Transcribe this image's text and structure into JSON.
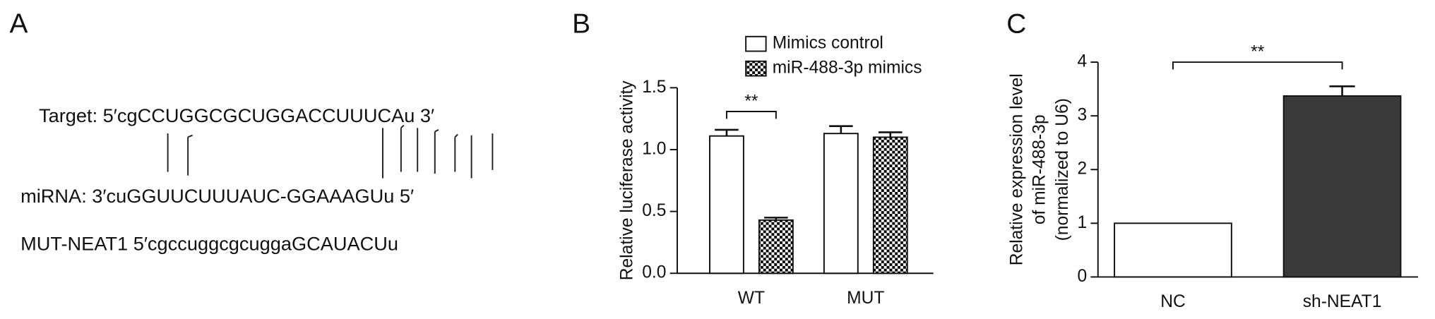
{
  "panel_a": {
    "label": "A",
    "lines": [
      "Target: 5′cgCCUGGCGCUGGACCUUUCAu 3′",
      "miRNA: 3′cuGGUUCUUUAUC-GGAAAGUu 5′",
      "MUT-NEAT1 5′cgccuggcgcuggaGCAUACUu"
    ]
  },
  "chart_data": [
    {
      "type": "bar",
      "label": "B",
      "ylabel": "Relative luciferase activity",
      "categories": [
        "WT",
        "MUT"
      ],
      "series": [
        {
          "name": "Mimics control",
          "color": "#ffffff",
          "values": [
            1.11,
            1.13
          ],
          "errors": [
            0.05,
            0.06
          ]
        },
        {
          "name": "miR-488-3p mimics",
          "color": "#000000",
          "pattern": "checker",
          "values": [
            0.43,
            1.1
          ],
          "errors": [
            0.02,
            0.04
          ]
        }
      ],
      "ylim": [
        0,
        1.5
      ],
      "yticks": [
        {
          "value": 0,
          "label": "0.0"
        },
        0.5,
        {
          "value": 1,
          "label": "1.0"
        },
        1.5
      ],
      "annotation": "**"
    },
    {
      "type": "bar",
      "label": "C",
      "ylabel": [
        "Relative expression level",
        "of miR-488-3p",
        "(normalized to U6)"
      ],
      "categories": [
        "NC",
        "sh-NEAT1"
      ],
      "series": [
        {
          "colors": [
            "#ffffff",
            "#3a3a3a"
          ],
          "values": [
            1.0,
            3.37
          ],
          "errors": [
            null,
            0.18
          ]
        }
      ],
      "ylim": [
        0,
        4
      ],
      "yticks": [
        0,
        1,
        2,
        3,
        4
      ],
      "annotation": "**"
    }
  ]
}
